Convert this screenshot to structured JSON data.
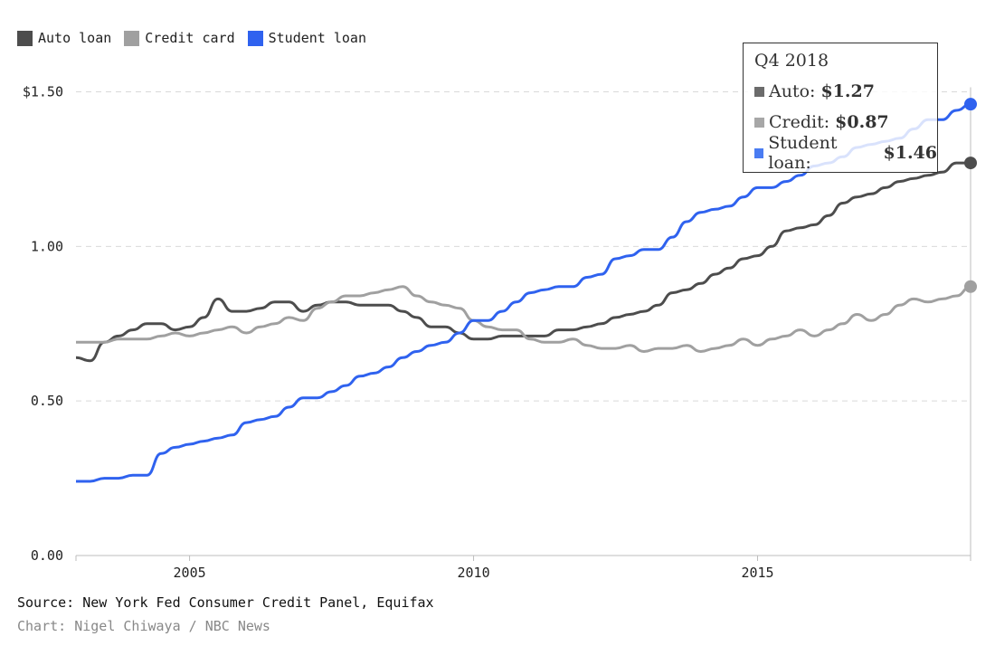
{
  "legend": [
    {
      "label": "Auto loan",
      "color": "#4d4d4d"
    },
    {
      "label": "Credit card",
      "color": "#a0a0a0"
    },
    {
      "label": "Student loan",
      "color": "#2f62ef"
    }
  ],
  "tooltip": {
    "title": "Q4 2018",
    "rows": [
      {
        "label": "Auto:",
        "value": "$1.27",
        "color": "#6b6b6b"
      },
      {
        "label": "Credit:",
        "value": "$0.87",
        "color": "#a7a7a7"
      },
      {
        "label": "Student loan:",
        "value": "$1.46",
        "color": "#4a7cf2"
      }
    ]
  },
  "footer": {
    "source": "Source: New York Fed Consumer Credit Panel, Equifax",
    "credit": "Chart: Nigel Chiwaya / NBC News"
  },
  "chart_data": {
    "type": "line",
    "ylim": [
      0,
      1.5
    ],
    "xlim": [
      2003.0,
      2018.75
    ],
    "yticks": [
      {
        "value": 1.5,
        "label": "$1.50"
      },
      {
        "value": 1.0,
        "label": "1.00"
      },
      {
        "value": 0.5,
        "label": "0.50"
      },
      {
        "value": 0.0,
        "label": "0.00"
      }
    ],
    "xticks": [
      {
        "value": 2005,
        "label": "2005"
      },
      {
        "value": 2010,
        "label": "2010"
      },
      {
        "value": 2015,
        "label": "2015"
      }
    ],
    "grid": true,
    "series": [
      {
        "name": "Auto loan",
        "color": "#4d4d4d",
        "x": [
          2003.0,
          2003.25,
          2003.5,
          2003.75,
          2004.0,
          2004.25,
          2004.5,
          2004.75,
          2005.0,
          2005.25,
          2005.5,
          2005.75,
          2006.0,
          2006.25,
          2006.5,
          2006.75,
          2007.0,
          2007.25,
          2007.5,
          2007.75,
          2008.0,
          2008.25,
          2008.5,
          2008.75,
          2009.0,
          2009.25,
          2009.5,
          2009.75,
          2010.0,
          2010.25,
          2010.5,
          2010.75,
          2011.0,
          2011.25,
          2011.5,
          2011.75,
          2012.0,
          2012.25,
          2012.5,
          2012.75,
          2013.0,
          2013.25,
          2013.5,
          2013.75,
          2014.0,
          2014.25,
          2014.5,
          2014.75,
          2015.0,
          2015.25,
          2015.5,
          2015.75,
          2016.0,
          2016.25,
          2016.5,
          2016.75,
          2017.0,
          2017.25,
          2017.5,
          2017.75,
          2018.0,
          2018.25,
          2018.5,
          2018.75
        ],
        "values": [
          0.64,
          0.63,
          0.69,
          0.71,
          0.73,
          0.75,
          0.75,
          0.73,
          0.74,
          0.77,
          0.83,
          0.79,
          0.79,
          0.8,
          0.82,
          0.82,
          0.79,
          0.81,
          0.82,
          0.82,
          0.81,
          0.81,
          0.81,
          0.79,
          0.77,
          0.74,
          0.74,
          0.72,
          0.7,
          0.7,
          0.71,
          0.71,
          0.71,
          0.71,
          0.73,
          0.73,
          0.74,
          0.75,
          0.77,
          0.78,
          0.79,
          0.81,
          0.85,
          0.86,
          0.88,
          0.91,
          0.93,
          0.96,
          0.97,
          1.0,
          1.05,
          1.06,
          1.07,
          1.1,
          1.14,
          1.16,
          1.17,
          1.19,
          1.21,
          1.22,
          1.23,
          1.24,
          1.27,
          1.27
        ]
      },
      {
        "name": "Credit card",
        "color": "#a0a0a0",
        "x": [
          2003.0,
          2003.25,
          2003.5,
          2003.75,
          2004.0,
          2004.25,
          2004.5,
          2004.75,
          2005.0,
          2005.25,
          2005.5,
          2005.75,
          2006.0,
          2006.25,
          2006.5,
          2006.75,
          2007.0,
          2007.25,
          2007.5,
          2007.75,
          2008.0,
          2008.25,
          2008.5,
          2008.75,
          2009.0,
          2009.25,
          2009.5,
          2009.75,
          2010.0,
          2010.25,
          2010.5,
          2010.75,
          2011.0,
          2011.25,
          2011.5,
          2011.75,
          2012.0,
          2012.25,
          2012.5,
          2012.75,
          2013.0,
          2013.25,
          2013.5,
          2013.75,
          2014.0,
          2014.25,
          2014.5,
          2014.75,
          2015.0,
          2015.25,
          2015.5,
          2015.75,
          2016.0,
          2016.25,
          2016.5,
          2016.75,
          2017.0,
          2017.25,
          2017.5,
          2017.75,
          2018.0,
          2018.25,
          2018.5,
          2018.75
        ],
        "values": [
          0.69,
          0.69,
          0.69,
          0.7,
          0.7,
          0.7,
          0.71,
          0.72,
          0.71,
          0.72,
          0.73,
          0.74,
          0.72,
          0.74,
          0.75,
          0.77,
          0.76,
          0.8,
          0.82,
          0.84,
          0.84,
          0.85,
          0.86,
          0.87,
          0.84,
          0.82,
          0.81,
          0.8,
          0.76,
          0.74,
          0.73,
          0.73,
          0.7,
          0.69,
          0.69,
          0.7,
          0.68,
          0.67,
          0.67,
          0.68,
          0.66,
          0.67,
          0.67,
          0.68,
          0.66,
          0.67,
          0.68,
          0.7,
          0.68,
          0.7,
          0.71,
          0.73,
          0.71,
          0.73,
          0.75,
          0.78,
          0.76,
          0.78,
          0.81,
          0.83,
          0.82,
          0.83,
          0.84,
          0.87
        ]
      },
      {
        "name": "Student loan",
        "color": "#2f62ef",
        "x": [
          2003.0,
          2003.25,
          2003.5,
          2003.75,
          2004.0,
          2004.25,
          2004.5,
          2004.75,
          2005.0,
          2005.25,
          2005.5,
          2005.75,
          2006.0,
          2006.25,
          2006.5,
          2006.75,
          2007.0,
          2007.25,
          2007.5,
          2007.75,
          2008.0,
          2008.25,
          2008.5,
          2008.75,
          2009.0,
          2009.25,
          2009.5,
          2009.75,
          2010.0,
          2010.25,
          2010.5,
          2010.75,
          2011.0,
          2011.25,
          2011.5,
          2011.75,
          2012.0,
          2012.25,
          2012.5,
          2012.75,
          2013.0,
          2013.25,
          2013.5,
          2013.75,
          2014.0,
          2014.25,
          2014.5,
          2014.75,
          2015.0,
          2015.25,
          2015.5,
          2015.75,
          2016.0,
          2016.25,
          2016.5,
          2016.75,
          2017.0,
          2017.25,
          2017.5,
          2017.75,
          2018.0,
          2018.25,
          2018.5,
          2018.75
        ],
        "values": [
          0.24,
          0.24,
          0.25,
          0.25,
          0.26,
          0.26,
          0.33,
          0.35,
          0.36,
          0.37,
          0.38,
          0.39,
          0.43,
          0.44,
          0.45,
          0.48,
          0.51,
          0.51,
          0.53,
          0.55,
          0.58,
          0.59,
          0.61,
          0.64,
          0.66,
          0.68,
          0.69,
          0.72,
          0.76,
          0.76,
          0.79,
          0.82,
          0.85,
          0.86,
          0.87,
          0.87,
          0.9,
          0.91,
          0.96,
          0.97,
          0.99,
          0.99,
          1.03,
          1.08,
          1.11,
          1.12,
          1.13,
          1.16,
          1.19,
          1.19,
          1.21,
          1.23,
          1.26,
          1.27,
          1.29,
          1.32,
          1.33,
          1.34,
          1.35,
          1.38,
          1.41,
          1.41,
          1.44,
          1.46
        ]
      }
    ]
  }
}
